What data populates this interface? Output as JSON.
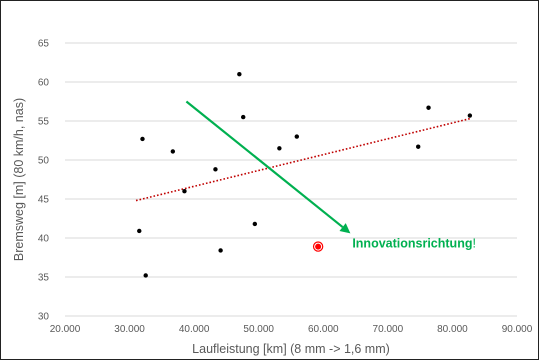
{
  "chart_data": {
    "type": "scatter",
    "xlabel": "Laufleistung [km] (8 mm -> 1,6 mm)",
    "ylabel": "Bremsweg [m] (80 km/h, nas)",
    "xlim": [
      20000,
      90000
    ],
    "ylim": [
      30,
      65
    ],
    "grid": "horizontal",
    "x_ticks": [
      20000,
      30000,
      40000,
      50000,
      60000,
      70000,
      80000,
      90000
    ],
    "x_tick_labels": [
      "20.000",
      "30.000",
      "40.000",
      "50.000",
      "60.000",
      "70.000",
      "80.000",
      "90.000"
    ],
    "y_ticks": [
      30,
      35,
      40,
      45,
      50,
      55,
      60,
      65
    ],
    "y_tick_labels": [
      "30",
      "35",
      "40",
      "45",
      "50",
      "55",
      "60",
      "65"
    ],
    "series": [
      {
        "color": "#000000",
        "points": [
          {
            "x": 31500,
            "y": 40.9
          },
          {
            "x": 32000,
            "y": 52.7
          },
          {
            "x": 32500,
            "y": 35.2
          },
          {
            "x": 36700,
            "y": 51.1
          },
          {
            "x": 38500,
            "y": 46.0
          },
          {
            "x": 43300,
            "y": 48.8
          },
          {
            "x": 44100,
            "y": 38.4
          },
          {
            "x": 47000,
            "y": 61.0
          },
          {
            "x": 47600,
            "y": 55.5
          },
          {
            "x": 49400,
            "y": 41.8
          },
          {
            "x": 53200,
            "y": 51.5
          },
          {
            "x": 55900,
            "y": 53.0
          },
          {
            "x": 74700,
            "y": 51.7
          },
          {
            "x": 76300,
            "y": 56.7
          },
          {
            "x": 82700,
            "y": 55.7
          }
        ]
      },
      {
        "color": "#FF0000",
        "highlight": true,
        "points": [
          {
            "x": 59200,
            "y": 38.9
          }
        ]
      }
    ],
    "trendline": {
      "color": "#C00000",
      "style": "dotted",
      "from": {
        "x": 31000,
        "y": 44.8
      },
      "to": {
        "x": 82700,
        "y": 55.3
      }
    },
    "arrow": {
      "color": "#00B050",
      "from": {
        "x": 38800,
        "y": 57.5
      },
      "to": {
        "x": 64200,
        "y": 40.6
      }
    },
    "annotation": {
      "text": "Innovationsrichtung",
      "suffix": "!",
      "color": "#00B050",
      "anchor": {
        "x": 64500,
        "y": 39.3
      }
    }
  }
}
